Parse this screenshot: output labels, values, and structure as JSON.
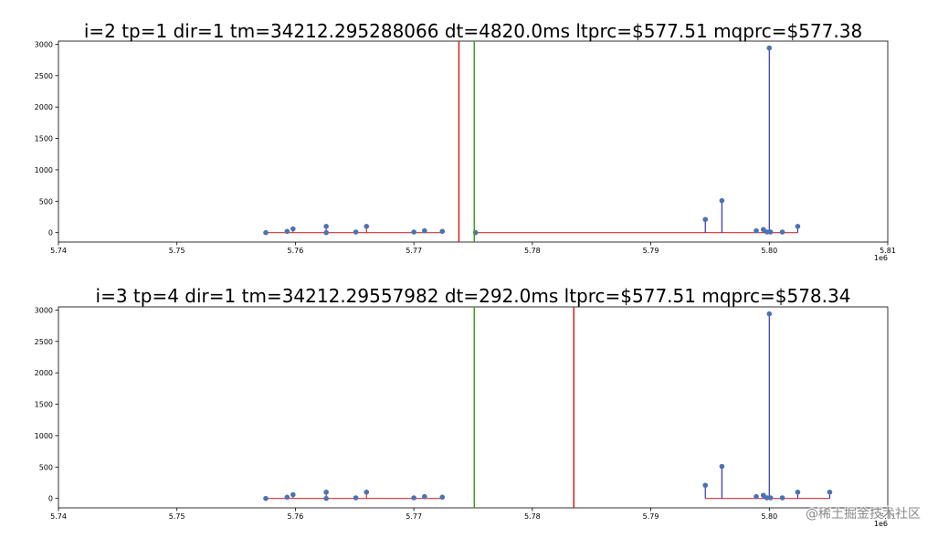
{
  "chart_data": [
    {
      "type": "stem",
      "title": "i=2 tp=1 dir=1 tm=34212.295288066 dt=4820.0ms ltprc=$577.51 mqprc=$577.38",
      "xlim": [
        5.74,
        5.81
      ],
      "ylim": [
        -150,
        3050
      ],
      "x_ticks": [
        5.74,
        5.75,
        5.76,
        5.77,
        5.78,
        5.79,
        5.8,
        5.81
      ],
      "y_ticks": [
        0,
        500,
        1000,
        1500,
        2000,
        2500,
        3000
      ],
      "x_offset_label": "1e6",
      "grid": false,
      "bid_stems": {
        "x": [
          5.7575,
          5.7593,
          5.7598,
          5.7626,
          5.7626,
          5.7651,
          5.766,
          5.77,
          5.7709,
          5.7724
        ],
        "y": [
          0,
          20,
          60,
          100,
          0,
          10,
          100,
          10,
          30,
          20
        ],
        "color": "#cc3333"
      },
      "ask_stems": {
        "x": [
          5.7752,
          5.7946,
          5.796,
          5.7989,
          5.7995,
          5.7998,
          5.8,
          5.8001,
          5.8011,
          5.8024
        ],
        "y": [
          0,
          210,
          510,
          30,
          50,
          10,
          2940,
          10,
          10,
          100
        ],
        "color": "#3333bb"
      },
      "vlines": [
        {
          "x": 5.7738,
          "color": "#cc2222"
        },
        {
          "x": 5.7751,
          "color": "#449922"
        }
      ]
    },
    {
      "type": "stem",
      "title": "i=3 tp=4 dir=1 tm=34212.29557982 dt=292.0ms ltprc=$577.51 mqprc=$578.34",
      "xlim": [
        5.74,
        5.81
      ],
      "ylim": [
        -150,
        3050
      ],
      "x_ticks": [
        5.74,
        5.75,
        5.76,
        5.77,
        5.78,
        5.79,
        5.8,
        5.81
      ],
      "y_ticks": [
        0,
        500,
        1000,
        1500,
        2000,
        2500,
        3000
      ],
      "x_offset_label": "1e6",
      "grid": false,
      "bid_stems": {
        "x": [
          5.7575,
          5.7593,
          5.7598,
          5.7626,
          5.7626,
          5.7651,
          5.766,
          5.77,
          5.7709,
          5.7724
        ],
        "y": [
          0,
          20,
          60,
          100,
          0,
          10,
          100,
          10,
          30,
          20
        ],
        "color": "#cc3333"
      },
      "ask_stems": {
        "x": [
          5.7946,
          5.796,
          5.7989,
          5.7995,
          5.7998,
          5.8,
          5.8001,
          5.8011,
          5.8024,
          5.8051
        ],
        "y": [
          210,
          510,
          30,
          50,
          10,
          2940,
          10,
          10,
          100,
          100
        ],
        "color": "#3333bb"
      },
      "vlines": [
        {
          "x": 5.7751,
          "color": "#449922"
        },
        {
          "x": 5.7835,
          "color": "#cc2222"
        }
      ]
    }
  ],
  "watermark": "@稀土掘金技术社区",
  "colors": {
    "marker": "#4c72b0",
    "axes": "#000000"
  }
}
